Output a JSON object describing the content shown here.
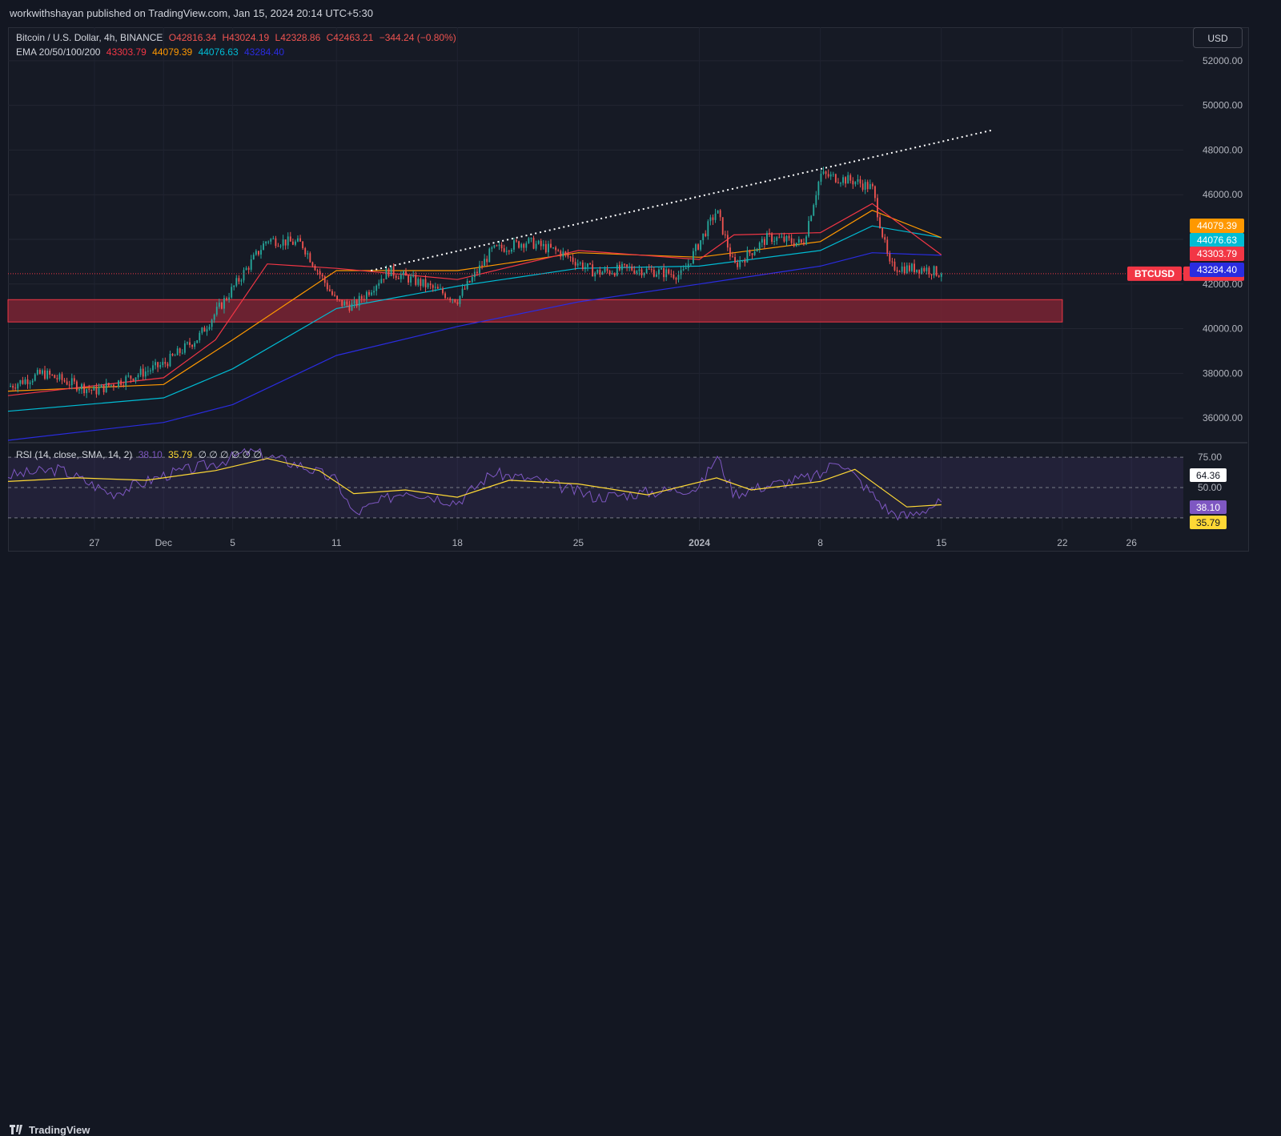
{
  "header": {
    "publisher": "workwithshayan published on TradingView.com, Jan 15, 2024 20:14 UTC+5:30"
  },
  "legend": {
    "symbol": "Bitcoin / U.S. Dollar, 4h, BINANCE",
    "open": "O42816.34",
    "high": "H43024.19",
    "low": "L42328.86",
    "close": "C42463.21",
    "change": "−344.24 (−0.80%)",
    "ema_label": "EMA 20/50/100/200",
    "ema20": "43303.79",
    "ema50": "44079.39",
    "ema100": "44076.63",
    "ema200": "43284.40",
    "rsi_label": "RSI (14, close, SMA, 14, 2)",
    "rsi_value": "38.10",
    "rsi_ma": "35.79",
    "rsi_extra": "∅ ∅ ∅ ∅ ∅ ∅"
  },
  "toolbar": {
    "currency_button": "USD"
  },
  "footer": {
    "brand": "TradingView"
  },
  "colors": {
    "up": "#26a69a",
    "down": "#ef5350",
    "ema20": "#f23645",
    "ema50": "#ff9800",
    "ema100": "#00bcd4",
    "ema200": "#2a2ce0",
    "rsi": "#7e57c2",
    "rsi_ma": "#fdd835",
    "zone": "#7a2434",
    "background": "#161a25"
  },
  "chart_data": [
    {
      "type": "line",
      "title": "Bitcoin / U.S. Dollar, 4h, BINANCE",
      "ylim": [
        35000,
        53500
      ],
      "y_ticks": [
        "52000.00",
        "50000.00",
        "48000.00",
        "46000.00",
        "44000.00",
        "42000.00",
        "40000.00",
        "38000.00",
        "36000.00"
      ],
      "y_tick_values": [
        52000,
        50000,
        48000,
        46000,
        44000,
        42000,
        40000,
        38000,
        36000
      ],
      "x_ticks": [
        "27",
        "Dec",
        "5",
        "11",
        "18",
        "25",
        "2024",
        "8",
        "15",
        "22",
        "26"
      ],
      "x_tick_dates": [
        "2023-11-27",
        "2023-12-01",
        "2023-12-05",
        "2023-12-11",
        "2023-12-18",
        "2023-12-25",
        "2024-01-01",
        "2024-01-08",
        "2024-01-15",
        "2024-01-22",
        "2024-01-26"
      ],
      "x_range": [
        "2023-11-22",
        "2024-01-29"
      ],
      "price_series": {
        "name": "BTCUSD",
        "x": [
          "2023-11-22",
          "2023-11-24",
          "2023-11-27",
          "2023-11-29",
          "2023-12-01",
          "2023-12-03",
          "2023-12-05",
          "2023-12-07",
          "2023-12-09",
          "2023-12-11",
          "2023-12-12",
          "2023-12-14",
          "2023-12-16",
          "2023-12-18",
          "2023-12-20",
          "2023-12-22",
          "2023-12-24",
          "2023-12-26",
          "2023-12-28",
          "2023-12-31",
          "2024-01-02",
          "2024-01-03",
          "2024-01-05",
          "2024-01-07",
          "2024-01-08",
          "2024-01-10",
          "2024-01-11",
          "2024-01-12",
          "2024-01-13",
          "2024-01-14",
          "2024-01-15"
        ],
        "values": [
          37400,
          38000,
          37200,
          37800,
          38400,
          39600,
          41800,
          44000,
          43800,
          41200,
          41000,
          42600,
          42000,
          41300,
          43500,
          43900,
          43400,
          42500,
          42700,
          42400,
          45300,
          42800,
          44100,
          43800,
          46900,
          46600,
          46300,
          42800,
          42700,
          42700,
          42463
        ]
      },
      "ema20": {
        "x": [
          "2023-11-22",
          "2023-12-01",
          "2023-12-04",
          "2023-12-07",
          "2023-12-11",
          "2023-12-18",
          "2023-12-25",
          "2024-01-01",
          "2024-01-03",
          "2024-01-08",
          "2024-01-11",
          "2024-01-15"
        ],
        "values": [
          37000,
          37800,
          39500,
          42900,
          42700,
          42200,
          43500,
          43100,
          44200,
          44300,
          45600,
          43304
        ]
      },
      "ema50": {
        "x": [
          "2023-11-22",
          "2023-12-01",
          "2023-12-05",
          "2023-12-11",
          "2023-12-18",
          "2023-12-25",
          "2024-01-01",
          "2024-01-08",
          "2024-01-11",
          "2024-01-15"
        ],
        "values": [
          37200,
          37500,
          39500,
          42600,
          42600,
          43400,
          43200,
          43900,
          45300,
          44079
        ]
      },
      "ema100": {
        "x": [
          "2023-11-22",
          "2023-12-01",
          "2023-12-05",
          "2023-12-11",
          "2023-12-18",
          "2023-12-25",
          "2024-01-01",
          "2024-01-08",
          "2024-01-11",
          "2024-01-15"
        ],
        "values": [
          36300,
          36900,
          38200,
          40900,
          41900,
          42700,
          42800,
          43500,
          44600,
          44077
        ]
      },
      "ema200": {
        "x": [
          "2023-11-22",
          "2023-12-01",
          "2023-12-05",
          "2023-12-11",
          "2023-12-18",
          "2023-12-25",
          "2024-01-01",
          "2024-01-08",
          "2024-01-11",
          "2024-01-15"
        ],
        "values": [
          35000,
          35800,
          36600,
          38800,
          40100,
          41200,
          42000,
          42800,
          43400,
          43284
        ]
      },
      "trendline": {
        "x": [
          "2023-12-13",
          "2024-01-18"
        ],
        "values": [
          42600,
          48900
        ]
      },
      "support_zone": {
        "x": [
          "2023-11-22",
          "2024-01-22"
        ],
        "y": [
          40300,
          41300
        ]
      },
      "last_price": {
        "label": "BTCUSD",
        "value": "42463.21",
        "y": 42463.21
      },
      "price_tags": [
        {
          "value": "44079.39",
          "y": 44079.39,
          "color": "#ff9800"
        },
        {
          "value": "44076.63",
          "y": 44076.63,
          "color": "#00bcd4"
        },
        {
          "value": "43303.79",
          "y": 43303.79,
          "color": "#f23645"
        },
        {
          "value": "43284.40",
          "y": 43284.4,
          "color": "#2a2ce0"
        }
      ]
    },
    {
      "type": "line",
      "title": "RSI (14, close, SMA, 14, 2)",
      "ylim": [
        15,
        85
      ],
      "y_ticks": [
        "75.00",
        "50.00"
      ],
      "y_tick_values": [
        75,
        50
      ],
      "band": [
        25,
        75
      ],
      "series": [
        {
          "name": "RSI",
          "x": [
            "2023-11-22",
            "2023-11-25",
            "2023-11-28",
            "2023-12-01",
            "2023-12-04",
            "2023-12-06",
            "2023-12-09",
            "2023-12-11",
            "2023-12-12",
            "2023-12-15",
            "2023-12-18",
            "2023-12-20",
            "2023-12-23",
            "2023-12-26",
            "2023-12-29",
            "2024-01-01",
            "2024-01-02",
            "2024-01-03",
            "2024-01-05",
            "2024-01-08",
            "2024-01-09",
            "2024-01-12",
            "2024-01-13",
            "2024-01-15"
          ],
          "values": [
            60,
            65,
            45,
            60,
            70,
            80,
            68,
            56,
            28,
            48,
            38,
            62,
            55,
            42,
            46,
            50,
            76,
            45,
            52,
            60,
            74,
            30,
            26,
            38.1
          ]
        },
        {
          "name": "RSI-based MA",
          "x": [
            "2023-11-22",
            "2023-11-26",
            "2023-11-30",
            "2023-12-04",
            "2023-12-07",
            "2023-12-10",
            "2023-12-12",
            "2023-12-15",
            "2023-12-18",
            "2023-12-21",
            "2023-12-25",
            "2023-12-29",
            "2024-01-02",
            "2024-01-04",
            "2024-01-08",
            "2024-01-10",
            "2024-01-13",
            "2024-01-15"
          ],
          "values": [
            55,
            58,
            56,
            64,
            74,
            64,
            45,
            48,
            42,
            56,
            53,
            44,
            58,
            48,
            55,
            65,
            34,
            35.79
          ]
        }
      ],
      "value_tags": [
        {
          "value": "64.36",
          "y": 64.36
        },
        {
          "value": "38.10",
          "y": 38.1
        },
        {
          "value": "35.79",
          "y": 35.79
        }
      ]
    }
  ]
}
